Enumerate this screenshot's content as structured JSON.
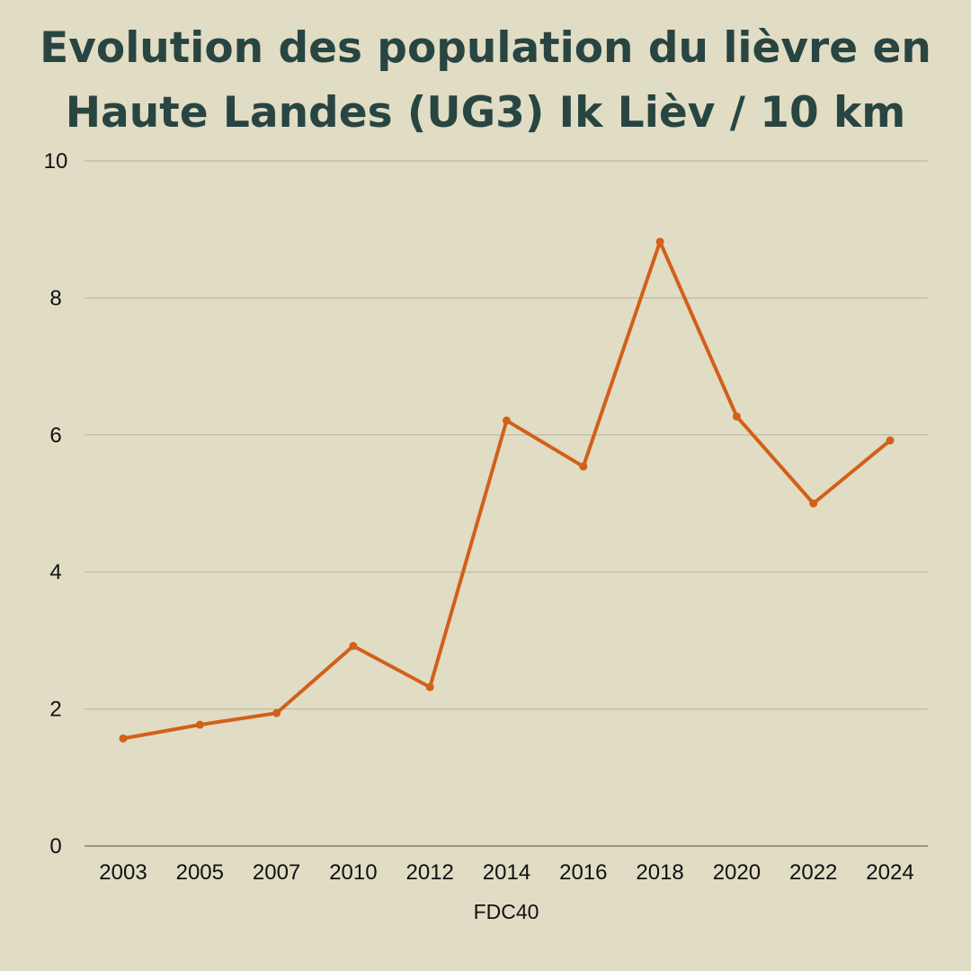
{
  "chart_data": {
    "type": "line",
    "title_lines": [
      "Evolution des population du lièvre en",
      "Haute Landes (UG3) Ik Lièv / 10 km"
    ],
    "xlabel": "FDC40",
    "ylabel": "",
    "categories": [
      "2003",
      "2005",
      "2007",
      "2010",
      "2012",
      "2014",
      "2016",
      "2018",
      "2020",
      "2022",
      "2024"
    ],
    "series": [
      {
        "values": [
          1.57,
          1.77,
          1.94,
          2.92,
          2.32,
          6.21,
          5.54,
          8.82,
          6.27,
          5.0,
          5.92
        ]
      }
    ],
    "ylim": [
      0,
      10
    ],
    "yticks": [
      0,
      2,
      4,
      6,
      8,
      10
    ],
    "grid": true,
    "legend": "none",
    "colors": {
      "line": "#d2601a",
      "grid": "#b4b19d",
      "axis": "#6e6e62",
      "title": "#284542",
      "background": "#e1dcc4"
    }
  }
}
